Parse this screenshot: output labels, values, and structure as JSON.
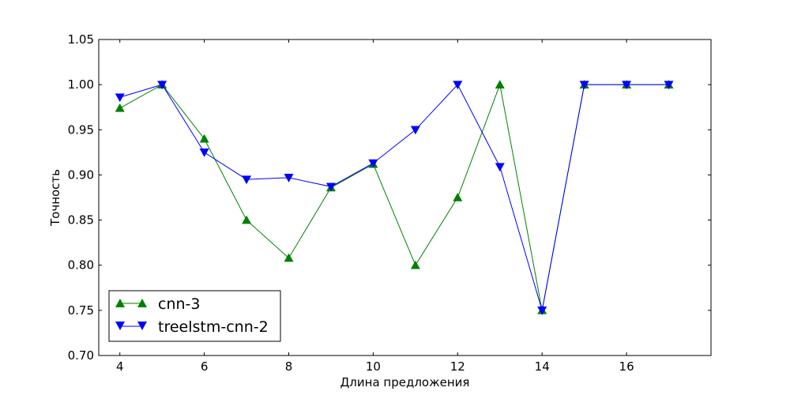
{
  "chart_data": {
    "type": "line",
    "xlabel": "Длина предложения",
    "ylabel": "Точность",
    "xlim": [
      3.5,
      18
    ],
    "ylim": [
      0.7,
      1.05
    ],
    "xticks": [
      4,
      6,
      8,
      10,
      12,
      14,
      16
    ],
    "xtick_labels": [
      "4",
      "6",
      "8",
      "10",
      "12",
      "14",
      "16"
    ],
    "yticks": [
      0.7,
      0.75,
      0.8,
      0.85,
      0.9,
      0.95,
      1.0,
      1.05
    ],
    "ytick_labels": [
      "0.70",
      "0.75",
      "0.80",
      "0.85",
      "0.90",
      "0.95",
      "1.00",
      "1.05"
    ],
    "grid": false,
    "legend_position": "lower-left",
    "x": [
      4,
      5,
      6,
      7,
      8,
      9,
      10,
      11,
      12,
      13,
      14,
      15,
      16,
      17
    ],
    "series": [
      {
        "name": "cnn-3",
        "color": "#008000",
        "marker": "triangle-up",
        "values": [
          0.974,
          1.0,
          0.94,
          0.85,
          0.808,
          0.886,
          0.912,
          0.8,
          0.875,
          1.0,
          0.75,
          1.0,
          1.0,
          1.0
        ]
      },
      {
        "name": "treelstm-cnn-2",
        "color": "#0000ff",
        "marker": "triangle-down",
        "values": [
          0.986,
          1.0,
          0.925,
          0.895,
          0.897,
          0.887,
          0.913,
          0.95,
          1.0,
          0.909,
          0.75,
          1.0,
          1.0,
          1.0
        ]
      }
    ]
  }
}
